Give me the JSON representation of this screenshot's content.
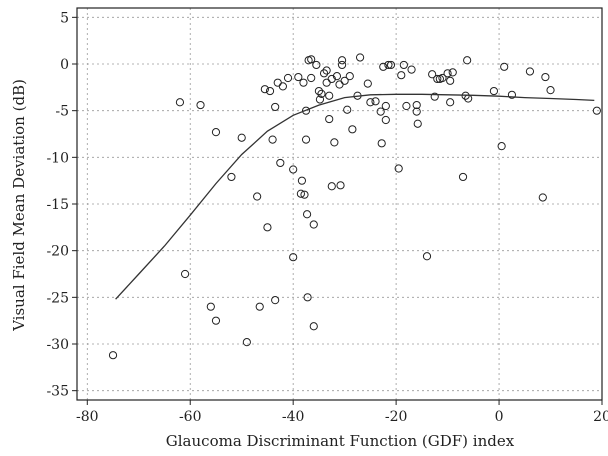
{
  "chart_data": {
    "type": "scatter",
    "title": "",
    "xlabel": "Glaucoma Discriminant Function (GDF) index",
    "ylabel": "Visual Field Mean Deviation (dB)",
    "xlim": [
      -82,
      20
    ],
    "ylim": [
      -36,
      6
    ],
    "grid": true,
    "xticks": [
      -80,
      -60,
      -40,
      -20,
      0,
      20
    ],
    "yticks": [
      5,
      0,
      -5,
      -10,
      -15,
      -20,
      -25,
      -30,
      -35
    ],
    "points": [
      {
        "x": -75,
        "y": -31.2
      },
      {
        "x": -62,
        "y": -4.1
      },
      {
        "x": -61,
        "y": -22.5
      },
      {
        "x": -58,
        "y": -4.4
      },
      {
        "x": -56,
        "y": -26
      },
      {
        "x": -55,
        "y": -7.3
      },
      {
        "x": -55,
        "y": -27.5
      },
      {
        "x": -52,
        "y": -12.1
      },
      {
        "x": -50,
        "y": -7.9
      },
      {
        "x": -49,
        "y": -29.8
      },
      {
        "x": -47,
        "y": -14.2
      },
      {
        "x": -46.5,
        "y": -26
      },
      {
        "x": -45.5,
        "y": -2.7
      },
      {
        "x": -45,
        "y": -17.5
      },
      {
        "x": -44.5,
        "y": -2.9
      },
      {
        "x": -44,
        "y": -8.1
      },
      {
        "x": -43.5,
        "y": -4.6
      },
      {
        "x": -43.5,
        "y": -25.3
      },
      {
        "x": -43,
        "y": -2
      },
      {
        "x": -42.5,
        "y": -10.6
      },
      {
        "x": -42,
        "y": -2.4
      },
      {
        "x": -41,
        "y": -1.5
      },
      {
        "x": -40,
        "y": -11.3
      },
      {
        "x": -40,
        "y": -20.7
      },
      {
        "x": -39,
        "y": -1.4
      },
      {
        "x": -38.5,
        "y": -13.9
      },
      {
        "x": -38.3,
        "y": -12.5
      },
      {
        "x": -38,
        "y": -2
      },
      {
        "x": -37.8,
        "y": -14
      },
      {
        "x": -37.5,
        "y": -5
      },
      {
        "x": -37.5,
        "y": -8.1
      },
      {
        "x": -37.3,
        "y": -16.1
      },
      {
        "x": -37.2,
        "y": -25
      },
      {
        "x": -37,
        "y": 0.4
      },
      {
        "x": -36.5,
        "y": 0.5
      },
      {
        "x": -36.5,
        "y": -1.5
      },
      {
        "x": -36,
        "y": -28.1
      },
      {
        "x": -36,
        "y": -17.2
      },
      {
        "x": -35.5,
        "y": -0.1
      },
      {
        "x": -35,
        "y": -2.9
      },
      {
        "x": -34.8,
        "y": -3.8
      },
      {
        "x": -34.5,
        "y": -3.2
      },
      {
        "x": -34,
        "y": -1
      },
      {
        "x": -33.5,
        "y": -0.7
      },
      {
        "x": -33.5,
        "y": -2
      },
      {
        "x": -33,
        "y": -3.4
      },
      {
        "x": -33,
        "y": -5.9
      },
      {
        "x": -32.5,
        "y": -1.6
      },
      {
        "x": -32.5,
        "y": -13.1
      },
      {
        "x": -32,
        "y": -8.4
      },
      {
        "x": -31.5,
        "y": -1.3
      },
      {
        "x": -31,
        "y": -2.2
      },
      {
        "x": -30.8,
        "y": -13
      },
      {
        "x": -30.5,
        "y": 0.4
      },
      {
        "x": -30.5,
        "y": -0.1
      },
      {
        "x": -30,
        "y": -1.8
      },
      {
        "x": -29.5,
        "y": -4.9
      },
      {
        "x": -29,
        "y": -1.3
      },
      {
        "x": -28.5,
        "y": -7
      },
      {
        "x": -27.5,
        "y": -3.4
      },
      {
        "x": -27,
        "y": 0.7
      },
      {
        "x": -25.5,
        "y": -2.1
      },
      {
        "x": -25,
        "y": -4.1
      },
      {
        "x": -24,
        "y": -4
      },
      {
        "x": -23,
        "y": -5.1
      },
      {
        "x": -22.8,
        "y": -8.5
      },
      {
        "x": -22.5,
        "y": -0.3
      },
      {
        "x": -22,
        "y": -6
      },
      {
        "x": -22,
        "y": -4.5
      },
      {
        "x": -21.5,
        "y": -0.1
      },
      {
        "x": -21,
        "y": -0.1
      },
      {
        "x": -19.5,
        "y": -11.2
      },
      {
        "x": -19,
        "y": -1.2
      },
      {
        "x": -18.5,
        "y": -0.1
      },
      {
        "x": -18,
        "y": -4.5
      },
      {
        "x": -17,
        "y": -0.6
      },
      {
        "x": -16,
        "y": -4.4
      },
      {
        "x": -16,
        "y": -5.1
      },
      {
        "x": -15.8,
        "y": -6.4
      },
      {
        "x": -14,
        "y": -20.6
      },
      {
        "x": -13,
        "y": -1.1
      },
      {
        "x": -12.5,
        "y": -3.5
      },
      {
        "x": -12,
        "y": -1.6
      },
      {
        "x": -11.5,
        "y": -1.6
      },
      {
        "x": -11,
        "y": -1.5
      },
      {
        "x": -10,
        "y": -1
      },
      {
        "x": -9.5,
        "y": -1.8
      },
      {
        "x": -9.5,
        "y": -4.1
      },
      {
        "x": -9,
        "y": -0.9
      },
      {
        "x": -7,
        "y": -12.1
      },
      {
        "x": -6.5,
        "y": -3.4
      },
      {
        "x": -6.2,
        "y": 0.4
      },
      {
        "x": -6,
        "y": -3.7
      },
      {
        "x": -1,
        "y": -2.9
      },
      {
        "x": 0.5,
        "y": -8.8
      },
      {
        "x": 1,
        "y": -0.3
      },
      {
        "x": 2.5,
        "y": -3.3
      },
      {
        "x": 6,
        "y": -0.8
      },
      {
        "x": 8.5,
        "y": -14.3
      },
      {
        "x": 9,
        "y": -1.4
      },
      {
        "x": 10,
        "y": -2.8
      },
      {
        "x": 19,
        "y": -5
      }
    ],
    "fit_line": [
      {
        "x": -74.5,
        "y": -25.2
      },
      {
        "x": -70,
        "y": -22.5
      },
      {
        "x": -65,
        "y": -19.5
      },
      {
        "x": -60,
        "y": -16.2
      },
      {
        "x": -55,
        "y": -12.8
      },
      {
        "x": -50,
        "y": -9.7
      },
      {
        "x": -45,
        "y": -7.2
      },
      {
        "x": -40,
        "y": -5.5
      },
      {
        "x": -35,
        "y": -4.4
      },
      {
        "x": -30,
        "y": -3.6
      },
      {
        "x": -25,
        "y": -3.3
      },
      {
        "x": -20,
        "y": -3.25
      },
      {
        "x": -15,
        "y": -3.25
      },
      {
        "x": -10,
        "y": -3.3
      },
      {
        "x": -5,
        "y": -3.35
      },
      {
        "x": 0,
        "y": -3.45
      },
      {
        "x": 5,
        "y": -3.6
      },
      {
        "x": 10,
        "y": -3.7
      },
      {
        "x": 15,
        "y": -3.8
      },
      {
        "x": 18.5,
        "y": -3.9
      }
    ]
  }
}
